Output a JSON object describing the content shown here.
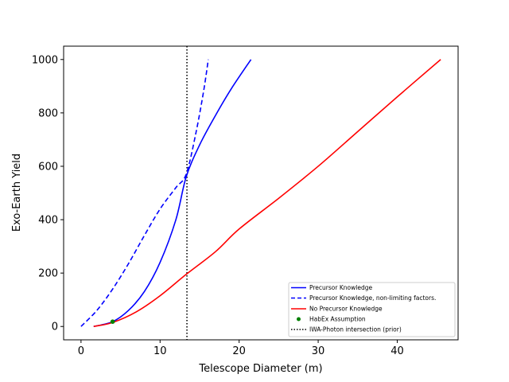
{
  "chart_data": {
    "type": "line",
    "title": "",
    "xlabel": "Telescope Diameter (m)",
    "ylabel": "Exo-Earth Yield",
    "xlim": [
      -2.2,
      47.7
    ],
    "ylim": [
      -50,
      1050
    ],
    "xticks": [
      0,
      10,
      20,
      30,
      40
    ],
    "yticks": [
      0,
      200,
      400,
      600,
      800,
      1000
    ],
    "xtick_labels": [
      "0",
      "10",
      "20",
      "30",
      "40"
    ],
    "ytick_labels": [
      "0",
      "200",
      "400",
      "600",
      "800",
      "1000"
    ],
    "grid": false,
    "legend_position": "lower-right",
    "series": [
      {
        "name": "Precursor Knowledge",
        "color": "#0000ff",
        "style": "solid",
        "x": [
          1.6,
          4.0,
          6.0,
          8.0,
          10.0,
          12.0,
          13.3,
          15.0,
          17.0,
          19.0,
          21.5
        ],
        "y": [
          0,
          18,
          60,
          130,
          240,
          400,
          560,
          680,
          790,
          890,
          1000
        ]
      },
      {
        "name": "Precursor Knowledge, non-limiting factors.",
        "color": "#0000ff",
        "style": "dashed",
        "x": [
          0,
          2,
          4,
          6,
          8,
          10,
          12,
          13.3,
          14.5,
          15.5,
          16.1
        ],
        "y": [
          0,
          60,
          140,
          235,
          340,
          440,
          520,
          570,
          720,
          880,
          1000
        ]
      },
      {
        "name": "No Precursor Knowledge",
        "color": "#ff0000",
        "style": "solid",
        "x": [
          1.6,
          4,
          7,
          10,
          13.3,
          17,
          20,
          25,
          30,
          35,
          40,
          45.5
        ],
        "y": [
          0,
          15,
          55,
          115,
          195,
          280,
          365,
          480,
          600,
          730,
          860,
          1000
        ]
      }
    ],
    "points": [
      {
        "name": "HabEx Assumption",
        "color": "#008000",
        "x": 4.0,
        "y": 18
      }
    ],
    "vlines": [
      {
        "name": "IWA-Photon intersection (prior)",
        "color": "#000000",
        "style": "dotted",
        "x": 13.4
      }
    ]
  }
}
